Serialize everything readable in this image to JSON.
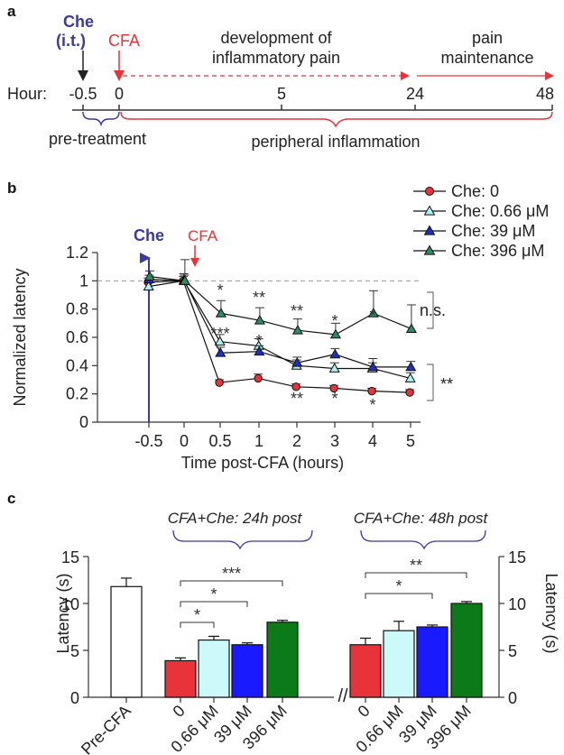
{
  "panels": {
    "a": "a",
    "b": "b",
    "c": "c"
  },
  "panel_a": {
    "che_top": "Che",
    "che_bottom": "(i.t.)",
    "cfa": "CFA",
    "dev_line1": "development of",
    "dev_line2": "inflammatory pain",
    "maint_line1": "pain",
    "maint_line2": "maintenance",
    "hour_label": "Hour:",
    "ticks": [
      "-0.5",
      "0",
      "5",
      "24",
      "48"
    ],
    "pretreatment": "pre-treatment",
    "inflammation": "peripheral inflammation",
    "colors": {
      "che": "#3b3b9b",
      "cfa": "#e8333a",
      "axis": "#333333"
    }
  },
  "chart_data": [
    {
      "type": "line",
      "panel": "b",
      "title": "",
      "xlabel": "Time post-CFA (hours)",
      "ylabel": "Normalized latency",
      "categories": [
        "-0.5",
        "0",
        "0.5",
        "1",
        "2",
        "3",
        "4",
        "5"
      ],
      "ylim": [
        0,
        1.2
      ],
      "yticks": [
        "0",
        "0.2",
        "0.4",
        "0.6",
        "0.8",
        "1",
        "1.2"
      ],
      "baseline": 1,
      "markers": {
        "che": "Che",
        "cfa": "CFA"
      },
      "series": [
        {
          "name": "Che: 0",
          "color": "#e8333a",
          "marker": "circle",
          "values": [
            0.99,
            1.0,
            0.28,
            0.31,
            0.25,
            0.24,
            0.22,
            0.21
          ],
          "errors": [
            0.03,
            0.03,
            0.02,
            0.03,
            0.02,
            0.02,
            0.02,
            0.02
          ]
        },
        {
          "name": "Che: 0.66 μM",
          "color": "#aef0f0",
          "marker": "triangle",
          "values": [
            0.96,
            1.0,
            0.57,
            0.54,
            0.4,
            0.38,
            0.38,
            0.31
          ],
          "errors": [
            0.04,
            0.05,
            0.05,
            0.05,
            0.04,
            0.04,
            0.04,
            0.04
          ]
        },
        {
          "name": "Che: 39 μM",
          "color": "#1f2fbf",
          "marker": "triangle",
          "values": [
            1.01,
            1.0,
            0.49,
            0.5,
            0.42,
            0.48,
            0.39,
            0.39
          ],
          "errors": [
            0.03,
            0.04,
            0.04,
            0.04,
            0.04,
            0.04,
            0.06,
            0.04
          ]
        },
        {
          "name": "Che: 396 μM",
          "color": "#2f8a63",
          "marker": "triangle",
          "values": [
            1.03,
            1.0,
            0.77,
            0.72,
            0.65,
            0.62,
            0.77,
            0.66
          ],
          "errors": [
            0.04,
            0.15,
            0.09,
            0.09,
            0.08,
            0.08,
            0.16,
            0.17
          ]
        }
      ],
      "annotations": [
        {
          "x": "0.5",
          "text": "*"
        },
        {
          "x": "0.5",
          "text": "***"
        },
        {
          "x": "1",
          "text": "**"
        },
        {
          "x": "1",
          "text": "*"
        },
        {
          "x": "2",
          "text": "**"
        },
        {
          "x": "2",
          "text": "**"
        },
        {
          "x": "3",
          "text": "*"
        },
        {
          "x": "3",
          "text": "*"
        },
        {
          "x": "4",
          "text": "*"
        },
        {
          "x": "4",
          "text": "*"
        }
      ],
      "brackets": [
        "n.s.",
        "**"
      ]
    },
    {
      "type": "bar",
      "panel": "c",
      "ylabel": "Latency (s)",
      "ylim": [
        0,
        15
      ],
      "yticks": [
        "0",
        "5",
        "10",
        "15"
      ],
      "groups": [
        {
          "title": "",
          "categories": [
            "Pre-CFA"
          ],
          "values": [
            11.8
          ],
          "errors": [
            0.9
          ],
          "colors": [
            "#ffffff"
          ]
        },
        {
          "title": "CFA+Che: 24h post",
          "categories": [
            "0",
            "0.66 μM",
            "39 μM",
            "396 μM"
          ],
          "values": [
            3.9,
            6.1,
            5.6,
            8.0
          ],
          "errors": [
            0.3,
            0.4,
            0.2,
            0.2
          ],
          "colors": [
            "#e8333a",
            "#ccfafa",
            "#1a1aff",
            "#0d7a1a"
          ]
        },
        {
          "title": "CFA+Che: 48h post",
          "categories": [
            "0",
            "0.66 μM",
            "39 μM",
            "396 μM"
          ],
          "values": [
            5.6,
            7.1,
            7.5,
            10.0
          ],
          "errors": [
            0.7,
            1.0,
            0.2,
            0.2
          ],
          "colors": [
            "#e8333a",
            "#ccfafa",
            "#1a1aff",
            "#0d7a1a"
          ]
        }
      ],
      "significance_24h": [
        "*",
        "*",
        "***"
      ],
      "significance_48h": [
        "*",
        "**"
      ],
      "axis_break": "//"
    }
  ]
}
